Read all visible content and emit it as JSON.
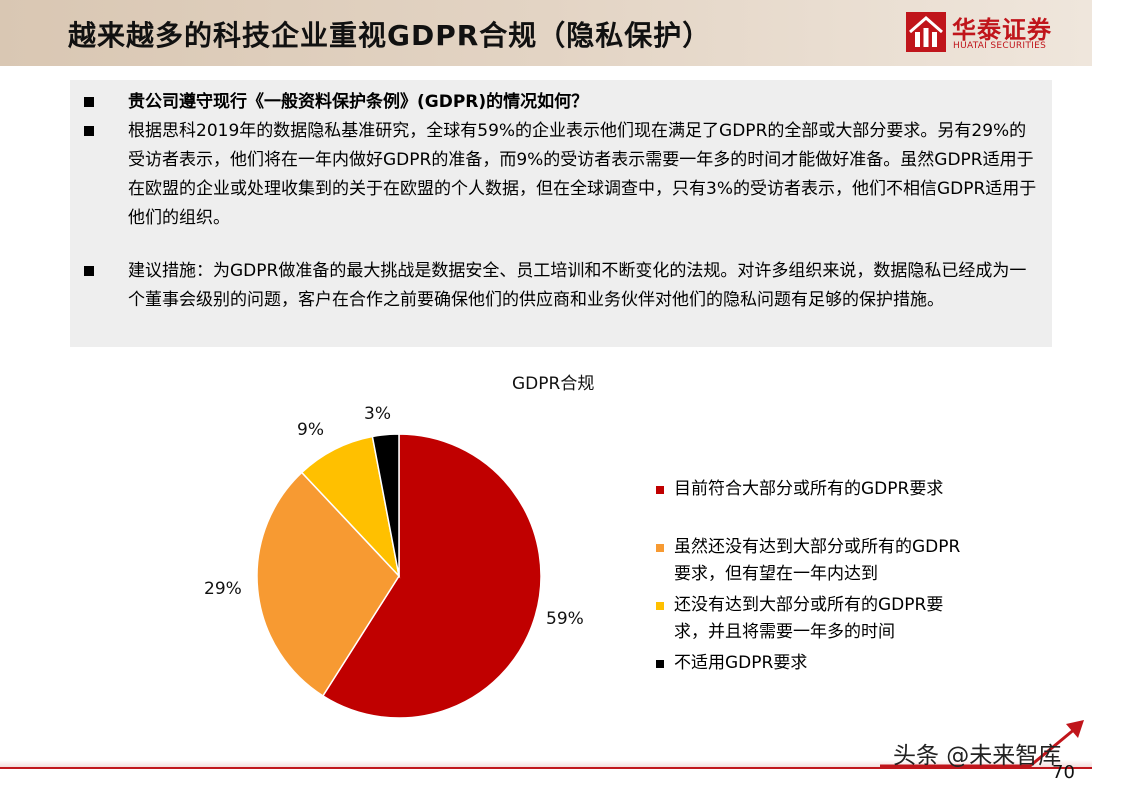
{
  "header": {
    "title": "越来越多的科技企业重视GDPR合规（隐私保护）",
    "logo_cn": "华泰证券",
    "logo_en": "HUATAI SECURITIES"
  },
  "bullets": [
    "贵公司遵守现行《一般资料保护条例》(GDPR)的情况如何？",
    "根据思科2019年的数据隐私基准研究，全球有59%的企业表示他们现在满足了GDPR的全部或大部分要求。另有29%的受访者表示，他们将在一年内做好GDPR的准备，而9%的受访者表示需要一年多的时间才能做好准备。虽然GDPR适用于在欧盟的企业或处理收集到的关于在欧盟的个人数据，但在全球调查中，只有3%的受访者表示，他们不相信GDPR适用于他们的组织。",
    "建议措施：为GDPR做准备的最大挑战是数据安全、员工培训和不断变化的法规。对许多组织来说，数据隐私已经成为一个董事会级别的问题，客户在合作之前要确保他们的供应商和业务伙伴对他们的隐私问题有足够的保护措施。"
  ],
  "chart_data": {
    "type": "pie",
    "title": "GDPR合规",
    "categories": [
      "目前符合大部分或所有的GDPR要求",
      "虽然还没有达到大部分或所有的GDPR要求，但有望在一年内达到",
      "还没有达到大部分或所有的GDPR要求，并且将需要一年多的时间",
      "不适用GDPR要求"
    ],
    "values": [
      59,
      29,
      9,
      3
    ],
    "data_labels": [
      "59%",
      "29%",
      "9%",
      "3%"
    ],
    "colors": [
      "#c00000",
      "#f79a32",
      "#ffc000",
      "#000000"
    ],
    "legend_position": "right",
    "legend": [
      [
        "目前符合大部分或所有的GDPR要求"
      ],
      [
        "虽然还没有达到大部分或所有的GDPR",
        "要求，但有望在一年内达到"
      ],
      [
        "还没有达到大部分或所有的GDPR要",
        "求，并且将需要一年多的时间"
      ],
      [
        "不适用GDPR要求"
      ]
    ]
  },
  "footer": {
    "watermark": "头条 @未来智库",
    "page_number": "70"
  }
}
